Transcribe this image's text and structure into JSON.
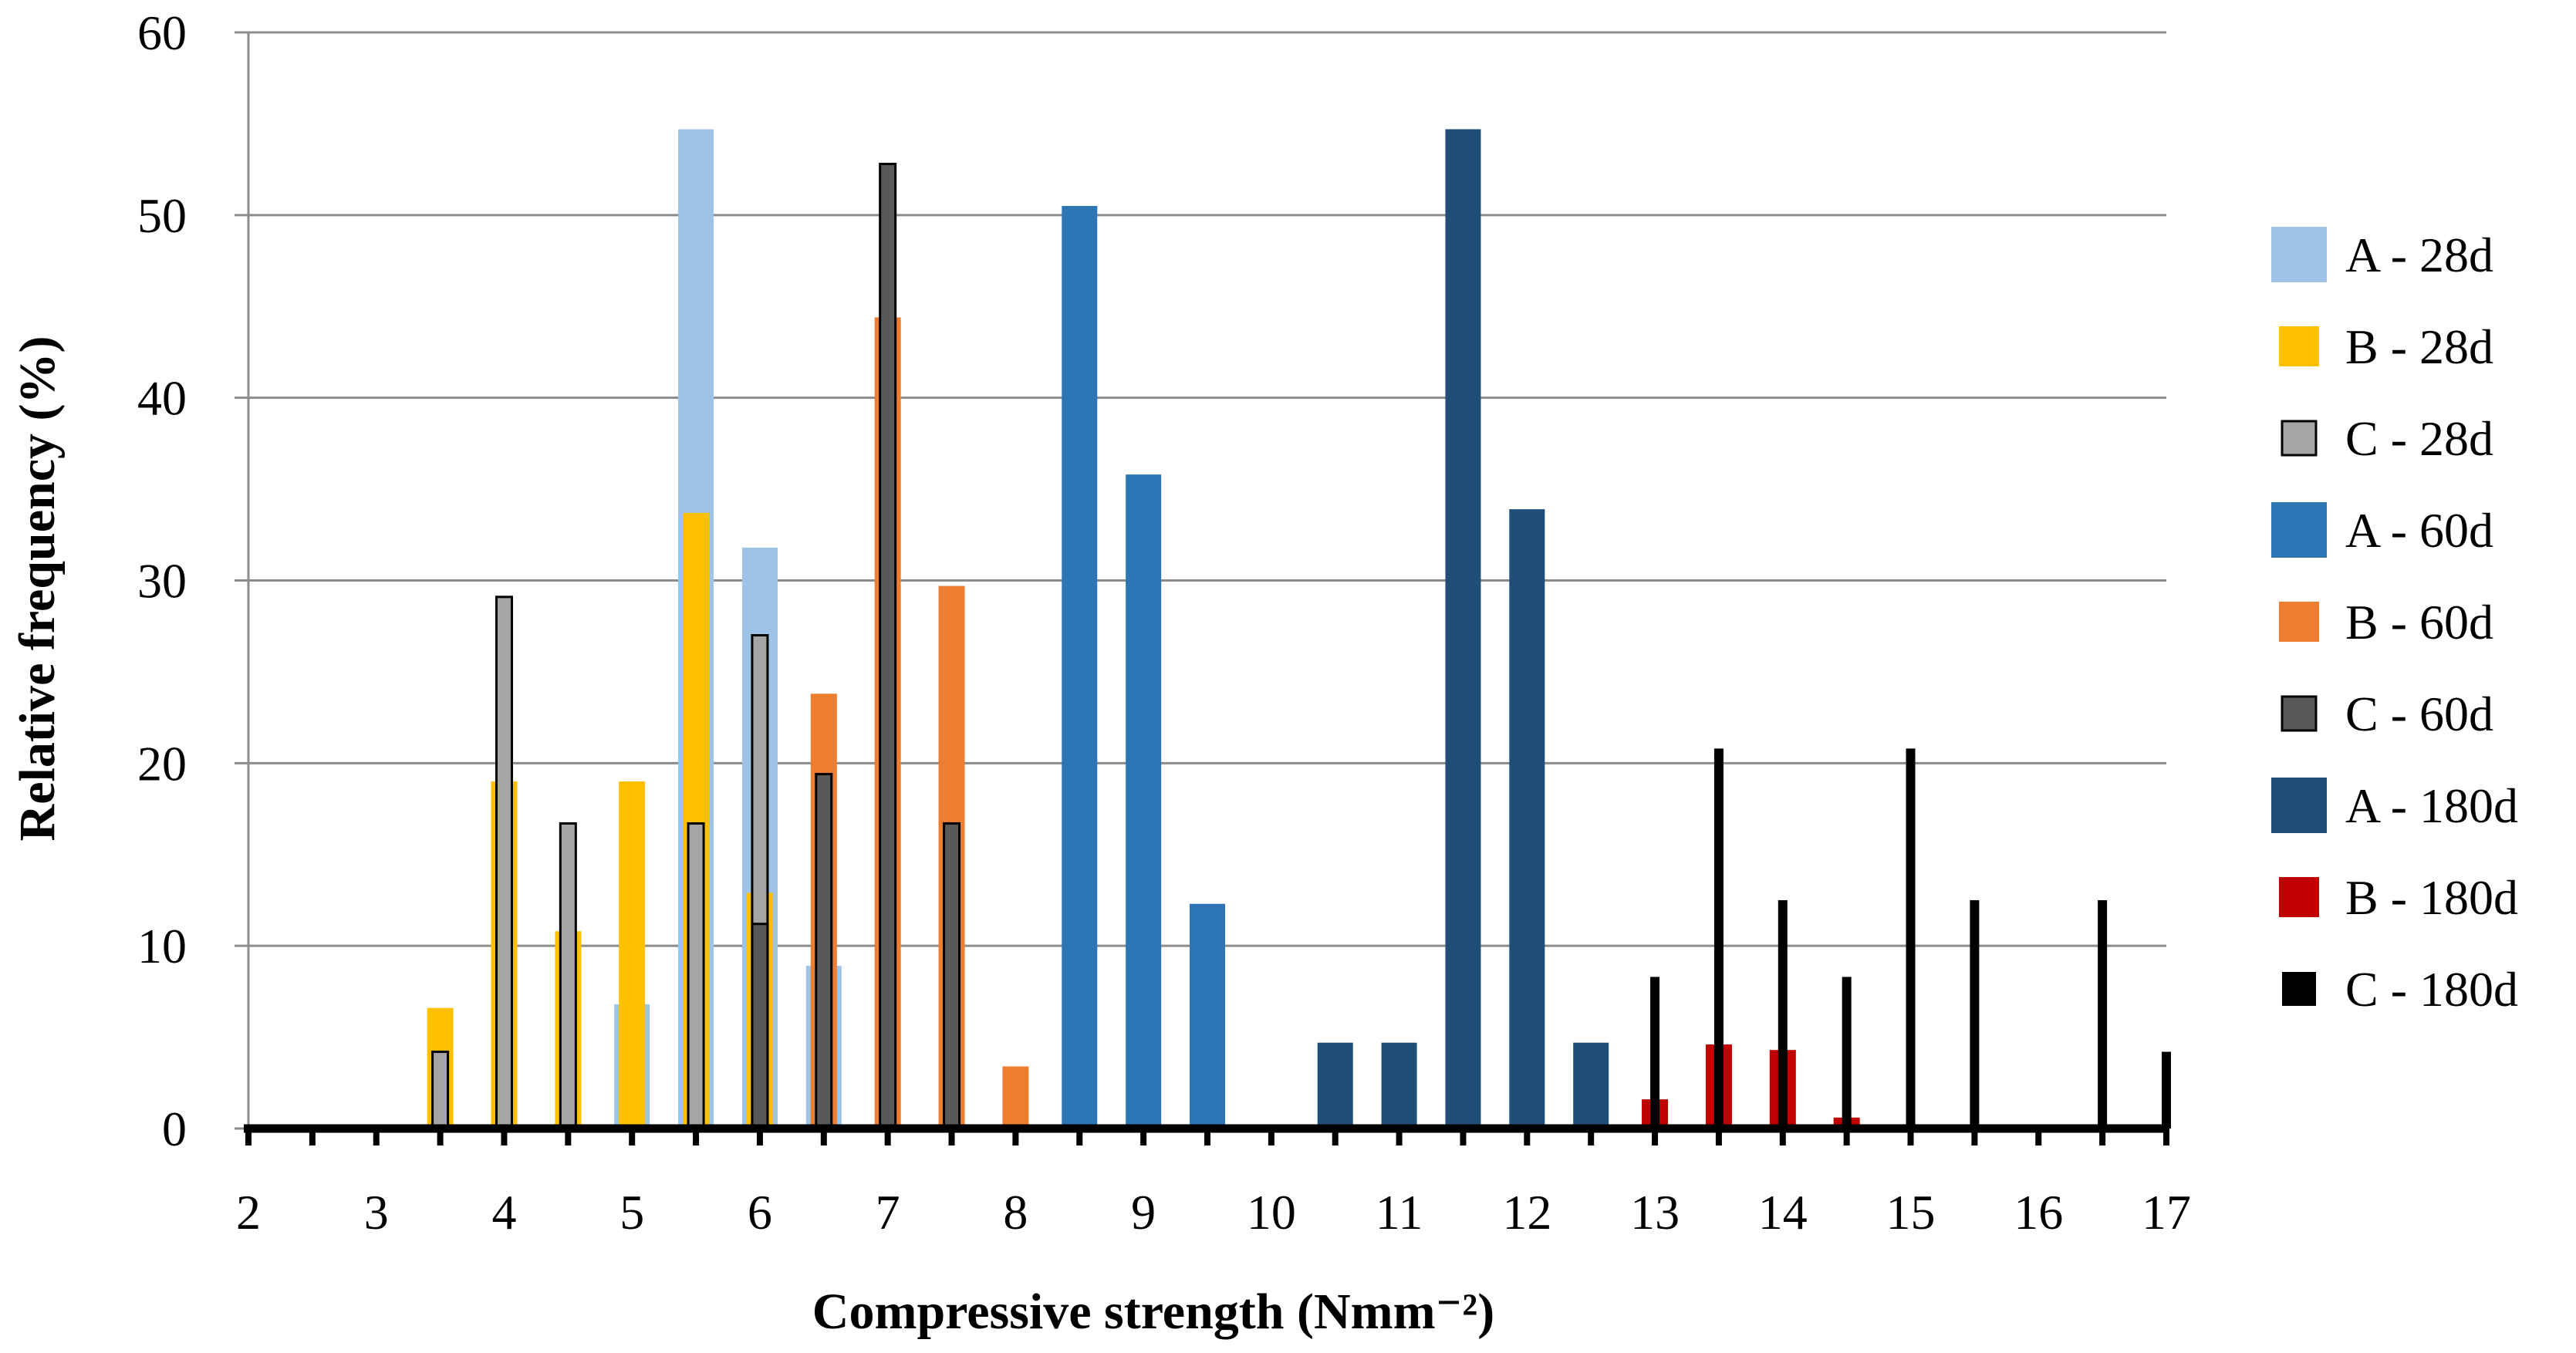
{
  "chart_data": {
    "type": "bar",
    "title": "",
    "xlabel": "Compressive strength (Nmm⁻²)",
    "ylabel": "Relative frequency  (%)",
    "xlim": [
      2,
      17
    ],
    "ylim": [
      0,
      60
    ],
    "x_ticks": [
      "2",
      "3",
      "4",
      "5",
      "6",
      "7",
      "8",
      "9",
      "10",
      "11",
      "12",
      "13",
      "14",
      "15",
      "16",
      "17"
    ],
    "y_ticks": [
      "0",
      "10",
      "20",
      "30",
      "40",
      "50",
      "60"
    ],
    "grid": "horizontal",
    "legend_position": "right",
    "series": [
      {
        "name": "A - 28d",
        "color": "#9DC3E6",
        "width": "wide",
        "points": [
          [
            5,
            6.8
          ],
          [
            5.5,
            54.7
          ],
          [
            6,
            31.8
          ],
          [
            6.5,
            8.9
          ]
        ]
      },
      {
        "name": "B - 28d",
        "color": "#FFC000",
        "width": "medium",
        "points": [
          [
            3.5,
            6.6
          ],
          [
            4,
            19
          ],
          [
            4.5,
            10.8
          ],
          [
            5,
            19
          ],
          [
            5.5,
            33.7
          ],
          [
            6,
            12.9
          ]
        ]
      },
      {
        "name": "C - 28d",
        "color": "#A5A5A5",
        "width": "narrow",
        "points": [
          [
            3.5,
            4.2
          ],
          [
            4,
            29.1
          ],
          [
            4.5,
            16.7
          ],
          [
            5.5,
            16.7
          ],
          [
            6,
            27
          ]
        ]
      },
      {
        "name": "A - 60d",
        "color": "#2E75B6",
        "width": "wide",
        "points": [
          [
            8.5,
            50.5
          ],
          [
            9,
            35.8
          ],
          [
            9.5,
            12.3
          ]
        ]
      },
      {
        "name": "B - 60d",
        "color": "#ED7D31",
        "width": "medium",
        "points": [
          [
            6.5,
            23.8
          ],
          [
            7,
            44.4
          ],
          [
            7.5,
            29.7
          ],
          [
            8,
            3.4
          ]
        ]
      },
      {
        "name": "C - 60d",
        "color": "#595959",
        "width": "narrow",
        "points": [
          [
            6,
            11.2
          ],
          [
            6.5,
            19.4
          ],
          [
            7,
            52.8
          ],
          [
            7.5,
            16.7
          ]
        ]
      },
      {
        "name": "A - 180d",
        "color": "#1F4E79",
        "width": "wide",
        "points": [
          [
            10.5,
            4.7
          ],
          [
            11,
            4.7
          ],
          [
            11.5,
            54.7
          ],
          [
            12,
            33.9
          ],
          [
            12.5,
            4.7
          ]
        ]
      },
      {
        "name": "B - 180d",
        "color": "#C00000",
        "width": "medium",
        "points": [
          [
            13,
            1.6
          ],
          [
            13.5,
            4.6
          ],
          [
            14,
            4.3
          ],
          [
            14.5,
            0.6
          ]
        ]
      },
      {
        "name": "C - 180d",
        "color": "#000000",
        "width": "thin",
        "points": [
          [
            13,
            8.3
          ],
          [
            13.5,
            20.8
          ],
          [
            14,
            12.5
          ],
          [
            14.5,
            8.3
          ],
          [
            15,
            20.8
          ],
          [
            15.5,
            12.5
          ],
          [
            16.5,
            12.5
          ],
          [
            17,
            4.2
          ]
        ]
      }
    ]
  }
}
